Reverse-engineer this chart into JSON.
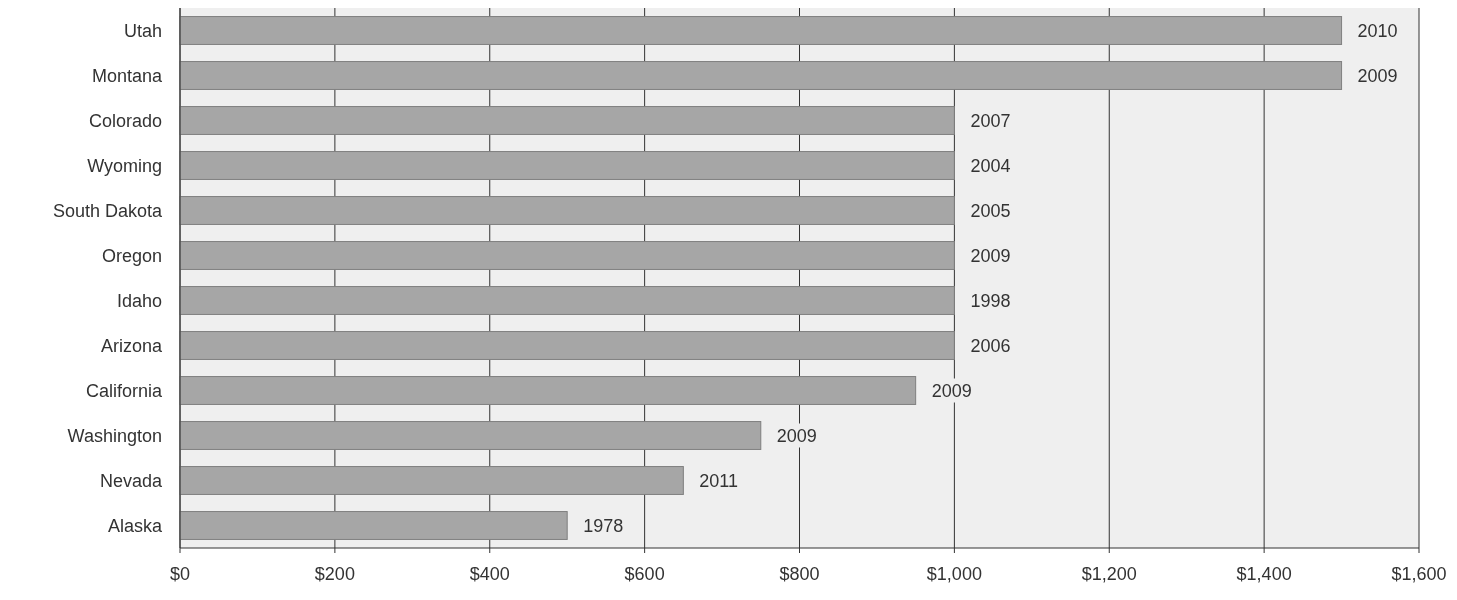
{
  "chart_data": {
    "type": "bar",
    "orientation": "horizontal",
    "categories": [
      "Utah",
      "Montana",
      "Colorado",
      "Wyoming",
      "South Dakota",
      "Oregon",
      "Idaho",
      "Arizona",
      "California",
      "Washington",
      "Nevada",
      "Alaska"
    ],
    "values": [
      1500,
      1500,
      1000,
      1000,
      1000,
      1000,
      1000,
      1000,
      950,
      750,
      650,
      500
    ],
    "annotations": [
      {
        "text": "2010",
        "x": 1500,
        "y": "Utah"
      },
      {
        "text": "2009",
        "x": 1500,
        "y": "Montana"
      },
      {
        "text": "2007",
        "x": 1000,
        "y": "Colorado"
      },
      {
        "text": "2004",
        "x": 1000,
        "y": "Wyoming"
      },
      {
        "text": "2005",
        "x": 1000,
        "y": "South Dakota"
      },
      {
        "text": "2009",
        "x": 1000,
        "y": "Oregon"
      },
      {
        "text": "1998",
        "x": 1000,
        "y": "Idaho"
      },
      {
        "text": "2006",
        "x": 1000,
        "y": "Arizona"
      },
      {
        "text": "2009",
        "x": 950,
        "y": "California"
      },
      {
        "text": "2009",
        "x": 750,
        "y": "Washington"
      },
      {
        "text": "2011",
        "x": 650,
        "y": "Nevada"
      },
      {
        "text": "1978",
        "x": 500,
        "y": "Alaska"
      }
    ],
    "color": "#a6a6a6",
    "xlim": [
      0,
      1600
    ],
    "xticks": [
      {
        "value": 0,
        "label": "$0"
      },
      {
        "value": 200,
        "label": "$200"
      },
      {
        "value": 400,
        "label": "$400"
      },
      {
        "value": 600,
        "label": "$600"
      },
      {
        "value": 800,
        "label": "$800"
      },
      {
        "value": 1000,
        "label": "$1,000"
      },
      {
        "value": 1200,
        "label": "$1,200"
      },
      {
        "value": 1400,
        "label": "$1,400"
      },
      {
        "value": 1600,
        "label": "$1,600"
      }
    ],
    "grid": "x"
  }
}
